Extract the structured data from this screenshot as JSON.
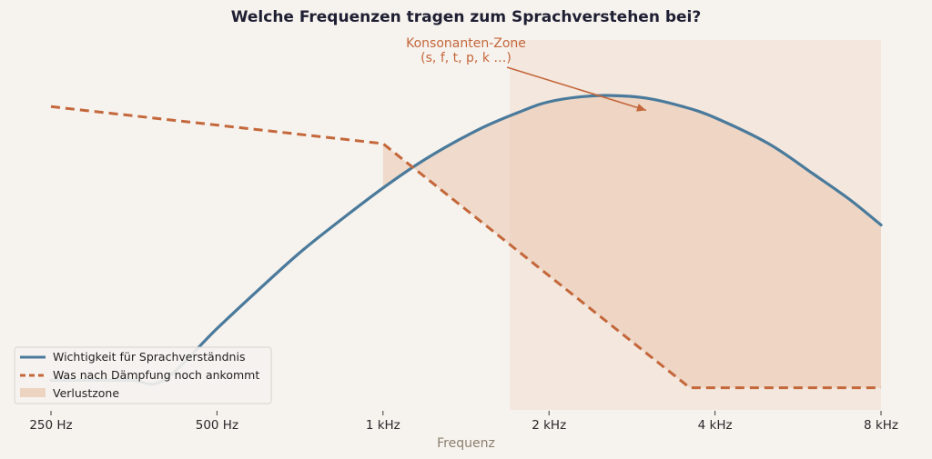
{
  "chart_data": {
    "type": "line",
    "title": "Welche Frequenzen tragen zum Sprachverstehen bei?",
    "xlabel": "Frequenz",
    "ylabel": "",
    "x_scale": "log2",
    "x_ticks": [
      {
        "value": 250,
        "label": "250 Hz"
      },
      {
        "value": 500,
        "label": "500 Hz"
      },
      {
        "value": 1000,
        "label": "1 kHz"
      },
      {
        "value": 2000,
        "label": "2 kHz"
      },
      {
        "value": 4000,
        "label": "4 kHz"
      },
      {
        "value": 8000,
        "label": "8 kHz"
      }
    ],
    "xlim": [
      250,
      8000
    ],
    "ylim": [
      0,
      1
    ],
    "grid": false,
    "legend_position": "lower-left",
    "series": [
      {
        "name": "Wichtigkeit für Sprachverständnis",
        "color": "#4a7a9b",
        "style": "solid",
        "x": [
          250,
          300,
          350,
          400,
          500,
          600,
          700,
          800,
          1000,
          1200,
          1500,
          1800,
          2000,
          2300,
          2600,
          3000,
          3500,
          4000,
          5000,
          6000,
          7000,
          8000
        ],
        "y": [
          0.08,
          0.08,
          0.08,
          0.08,
          0.22,
          0.33,
          0.42,
          0.49,
          0.6,
          0.68,
          0.76,
          0.81,
          0.833,
          0.847,
          0.85,
          0.843,
          0.82,
          0.79,
          0.72,
          0.64,
          0.57,
          0.5
        ]
      },
      {
        "name": "Was nach Dämpfung noch ankommt",
        "color": "#c4673a",
        "style": "dashed",
        "x": [
          250,
          1000,
          3600,
          8000
        ],
        "y": [
          0.82,
          0.72,
          0.06,
          0.06
        ]
      }
    ],
    "shaded_regions": [
      {
        "name": "Verlustzone",
        "color": "#e9c7ae",
        "between": "series 0 above series 1",
        "from": 1000,
        "to": 8000
      },
      {
        "name": "",
        "color": "#f2e3d8",
        "x_from": 1700,
        "x_to": 8000,
        "y_from": 0,
        "y_to": 1
      }
    ],
    "annotations": [
      {
        "text": "Konsonanten-Zone\n(s, f, t, p, k …)",
        "lines": [
          "Konsonanten-Zone",
          "(s, f, t, p, k …)"
        ],
        "arrow_to": {
          "x": 3000,
          "y": 0.81
        }
      }
    ],
    "legend": [
      {
        "label": "Wichtigkeit für Sprachverständnis",
        "kind": "line",
        "color": "#4a7a9b"
      },
      {
        "label": "Was nach Dämpfung noch ankommt",
        "kind": "dashed",
        "color": "#c4673a"
      },
      {
        "label": "Verlustzone",
        "kind": "patch",
        "color": "#e9c7ae"
      }
    ]
  }
}
